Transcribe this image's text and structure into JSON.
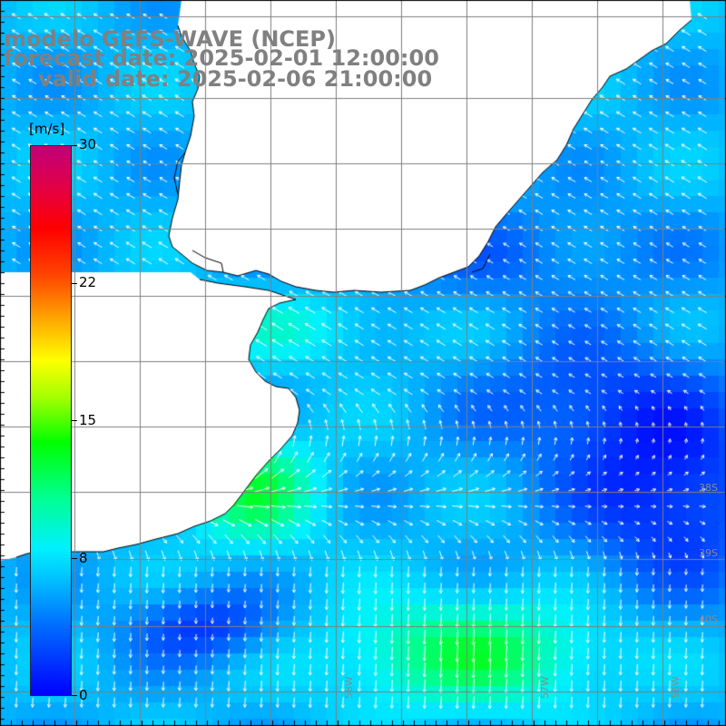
{
  "title": {
    "line1": "modelo GEFS-WAVE (NCEP)",
    "line2": "forecast date: 2025-02-01 12:00:00",
    "line3": "valid date: 2025-02-06 21:00:00"
  },
  "colorbar": {
    "unit": "[m/s]",
    "min": 0,
    "max": 30,
    "ticks": [
      "30",
      "22",
      "15",
      "8",
      "0"
    ]
  },
  "grid": {
    "lat_labels": [
      "38S",
      "39S",
      "40S"
    ],
    "lon_labels": [
      "58W",
      "57W",
      "56W"
    ]
  },
  "colors": {
    "land": "#ffffff",
    "coastline": "#000000",
    "grid": "#7f7f7f",
    "arrows": "#ffffff",
    "title": "#808080"
  }
}
